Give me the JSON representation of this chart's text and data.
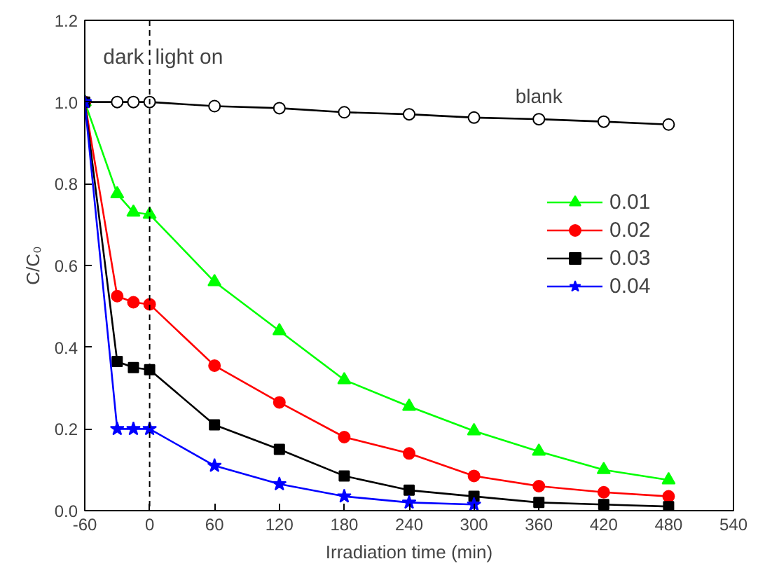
{
  "chart_data": {
    "type": "line",
    "xlabel": "Irradiation time (min)",
    "ylabel": "C/C₀",
    "xlim": [
      -60,
      540
    ],
    "ylim": [
      0,
      1.2
    ],
    "xticks": [
      -60,
      0,
      60,
      120,
      180,
      240,
      300,
      360,
      420,
      480,
      540
    ],
    "yticks": [
      {
        "value": 0,
        "label": "0.0"
      },
      0.2,
      0.4,
      0.6,
      0.8,
      {
        "value": 1,
        "label": "1.0"
      },
      1.2
    ],
    "x": [
      -60,
      -30,
      -15,
      0,
      60,
      120,
      180,
      240,
      300,
      360,
      420,
      480
    ],
    "series": [
      {
        "name": "blank",
        "color": "#000000",
        "marker": "circle",
        "values": [
          1.0,
          1.0,
          1.0,
          1.0,
          0.99,
          0.985,
          0.975,
          0.97,
          0.962,
          0.958,
          0.952,
          0.945
        ]
      },
      {
        "name": "0.01",
        "color": "#00ff00",
        "marker": "triangle",
        "values": [
          1.0,
          0.775,
          0.73,
          0.725,
          0.56,
          0.44,
          0.32,
          0.255,
          0.195,
          0.145,
          0.1,
          0.075
        ]
      },
      {
        "name": "0.02",
        "color": "#ff0000",
        "marker": "circle",
        "values": [
          1.0,
          0.525,
          0.51,
          0.505,
          0.355,
          0.265,
          0.18,
          0.14,
          0.085,
          0.06,
          0.045,
          0.035
        ]
      },
      {
        "name": "0.03",
        "color": "#000000",
        "marker": "square",
        "values": [
          1.0,
          0.365,
          0.35,
          0.345,
          0.21,
          0.15,
          0.085,
          0.05,
          0.035,
          0.02,
          0.015,
          0.01
        ]
      },
      {
        "name": "0.04",
        "color": "#0000ff",
        "marker": "star",
        "values": [
          1.0,
          0.2,
          0.2,
          0.2,
          0.11,
          0.065,
          0.035,
          0.02,
          0.015,
          null,
          null,
          null
        ]
      }
    ],
    "ref_lines": [
      {
        "axis": "x",
        "value": 0,
        "line_style": "dashed",
        "color": "#000000"
      }
    ],
    "annotations": [
      "dark",
      "light on"
    ],
    "legend": "right",
    "grid": false
  }
}
